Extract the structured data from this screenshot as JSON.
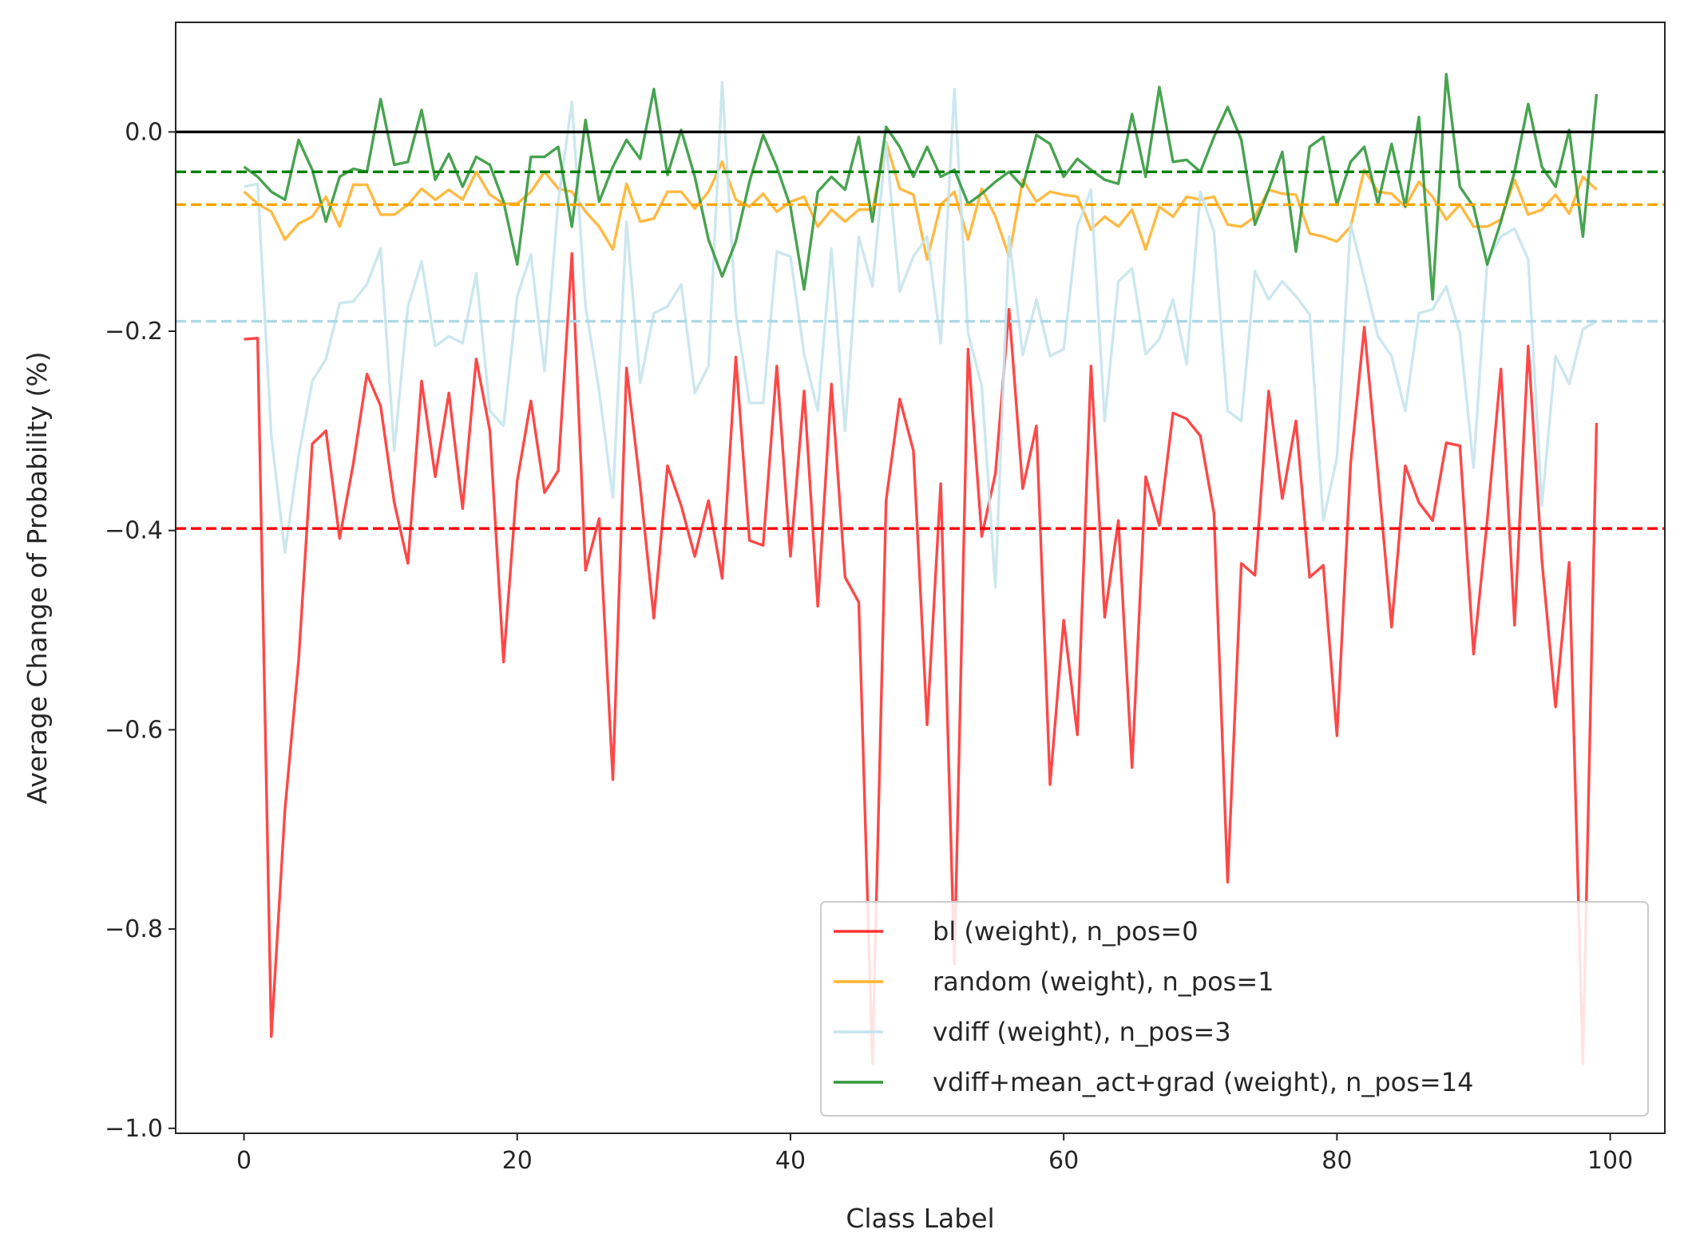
{
  "chart_data": {
    "type": "line",
    "title": "",
    "xlabel": "Class Label",
    "ylabel": "Average Change of Probability (%)",
    "xlim": [
      -5,
      104
    ],
    "ylim": [
      -1.005,
      0.11
    ],
    "xticks": [
      0,
      20,
      40,
      60,
      80,
      100
    ],
    "yticks": [
      0.0,
      -0.2,
      -0.4,
      -0.6,
      -0.8,
      -1.0
    ],
    "xtick_labels": [
      "0",
      "20",
      "40",
      "60",
      "80",
      "100"
    ],
    "ytick_labels": [
      "0.0",
      "−0.2",
      "−0.4",
      "−0.6",
      "−0.8",
      "−1.0"
    ],
    "grid": false,
    "legend_position": "lower-right",
    "reference_line": {
      "y": 0.0,
      "color": "#000000"
    },
    "series": [
      {
        "name": "bl (weight), n_pos=0",
        "color": "#ff3333",
        "mean": -0.398,
        "mean_color": "#ff0000",
        "values": [
          -0.208,
          -0.207,
          -0.908,
          -0.68,
          -0.53,
          -0.313,
          -0.3,
          -0.408,
          -0.333,
          -0.243,
          -0.275,
          -0.372,
          -0.433,
          -0.25,
          -0.346,
          -0.262,
          -0.378,
          -0.228,
          -0.3,
          -0.532,
          -0.35,
          -0.27,
          -0.362,
          -0.34,
          -0.122,
          -0.44,
          -0.388,
          -0.65,
          -0.237,
          -0.355,
          -0.488,
          -0.335,
          -0.375,
          -0.426,
          -0.37,
          -0.448,
          -0.226,
          -0.41,
          -0.415,
          -0.235,
          -0.426,
          -0.26,
          -0.476,
          -0.253,
          -0.447,
          -0.472,
          -0.935,
          -0.37,
          -0.268,
          -0.32,
          -0.595,
          -0.353,
          -0.835,
          -0.218,
          -0.406,
          -0.343,
          -0.178,
          -0.358,
          -0.295,
          -0.655,
          -0.49,
          -0.605,
          -0.235,
          -0.487,
          -0.39,
          -0.638,
          -0.346,
          -0.395,
          -0.282,
          -0.288,
          -0.305,
          -0.383,
          -0.753,
          -0.433,
          -0.445,
          -0.26,
          -0.368,
          -0.29,
          -0.447,
          -0.435,
          -0.606,
          -0.333,
          -0.196,
          -0.343,
          -0.497,
          -0.335,
          -0.372,
          -0.39,
          -0.312,
          -0.315,
          -0.524,
          -0.39,
          -0.238,
          -0.495,
          -0.215,
          -0.43,
          -0.577,
          -0.432,
          -0.935,
          -0.292
        ]
      },
      {
        "name": "random (weight), n_pos=1",
        "color": "#ffb32e",
        "mean": -0.073,
        "mean_color": "#ffa500",
        "values": [
          -0.06,
          -0.072,
          -0.08,
          -0.108,
          -0.092,
          -0.085,
          -0.065,
          -0.095,
          -0.053,
          -0.053,
          -0.083,
          -0.083,
          -0.073,
          -0.057,
          -0.068,
          -0.058,
          -0.068,
          -0.04,
          -0.063,
          -0.072,
          -0.072,
          -0.06,
          -0.04,
          -0.057,
          -0.06,
          -0.08,
          -0.095,
          -0.118,
          -0.052,
          -0.09,
          -0.087,
          -0.06,
          -0.06,
          -0.077,
          -0.06,
          -0.03,
          -0.068,
          -0.075,
          -0.062,
          -0.08,
          -0.07,
          -0.065,
          -0.095,
          -0.078,
          -0.09,
          -0.078,
          -0.078,
          -0.01,
          -0.057,
          -0.063,
          -0.128,
          -0.073,
          -0.06,
          -0.108,
          -0.057,
          -0.085,
          -0.125,
          -0.048,
          -0.07,
          -0.06,
          -0.063,
          -0.065,
          -0.098,
          -0.085,
          -0.095,
          -0.078,
          -0.118,
          -0.075,
          -0.085,
          -0.065,
          -0.068,
          -0.065,
          -0.093,
          -0.095,
          -0.085,
          -0.058,
          -0.062,
          -0.063,
          -0.102,
          -0.105,
          -0.11,
          -0.095,
          -0.038,
          -0.06,
          -0.062,
          -0.075,
          -0.05,
          -0.065,
          -0.088,
          -0.073,
          -0.095,
          -0.095,
          -0.088,
          -0.048,
          -0.083,
          -0.078,
          -0.063,
          -0.082,
          -0.045,
          -0.058
        ]
      },
      {
        "name": "vdiff (weight), n_pos=3",
        "color": "#c6e4ec",
        "mean": -0.19,
        "mean_color": "#add8e6",
        "values": [
          -0.055,
          -0.052,
          -0.305,
          -0.422,
          -0.325,
          -0.25,
          -0.228,
          -0.172,
          -0.17,
          -0.153,
          -0.117,
          -0.32,
          -0.175,
          -0.13,
          -0.215,
          -0.205,
          -0.212,
          -0.142,
          -0.28,
          -0.295,
          -0.165,
          -0.123,
          -0.24,
          -0.07,
          0.03,
          -0.175,
          -0.26,
          -0.367,
          -0.09,
          -0.252,
          -0.182,
          -0.175,
          -0.153,
          -0.262,
          -0.235,
          0.05,
          -0.182,
          -0.272,
          -0.272,
          -0.12,
          -0.125,
          -0.223,
          -0.28,
          -0.117,
          -0.3,
          -0.105,
          -0.155,
          -0.01,
          -0.16,
          -0.125,
          -0.105,
          -0.212,
          0.043,
          -0.202,
          -0.255,
          -0.457,
          -0.105,
          -0.224,
          -0.168,
          -0.225,
          -0.218,
          -0.095,
          -0.058,
          -0.29,
          -0.15,
          -0.137,
          -0.223,
          -0.208,
          -0.168,
          -0.233,
          -0.06,
          -0.1,
          -0.28,
          -0.29,
          -0.14,
          -0.168,
          -0.15,
          -0.165,
          -0.183,
          -0.39,
          -0.327,
          -0.092,
          -0.147,
          -0.205,
          -0.225,
          -0.28,
          -0.182,
          -0.178,
          -0.155,
          -0.202,
          -0.337,
          -0.13,
          -0.105,
          -0.097,
          -0.128,
          -0.375,
          -0.225,
          -0.253,
          -0.198,
          -0.19
        ]
      },
      {
        "name": "vdiff+mean_act+grad (weight), n_pos=14",
        "color": "#33993d",
        "mean": -0.04,
        "mean_color": "#008000",
        "values": [
          -0.035,
          -0.045,
          -0.06,
          -0.068,
          -0.008,
          -0.038,
          -0.09,
          -0.045,
          -0.037,
          -0.04,
          0.033,
          -0.033,
          -0.03,
          0.022,
          -0.048,
          -0.022,
          -0.055,
          -0.025,
          -0.033,
          -0.07,
          -0.133,
          -0.025,
          -0.025,
          -0.015,
          -0.095,
          0.012,
          -0.07,
          -0.035,
          -0.008,
          -0.027,
          0.043,
          -0.043,
          0.002,
          -0.045,
          -0.108,
          -0.145,
          -0.11,
          -0.05,
          -0.003,
          -0.035,
          -0.075,
          -0.158,
          -0.06,
          -0.045,
          -0.058,
          -0.005,
          -0.09,
          0.005,
          -0.015,
          -0.045,
          -0.015,
          -0.045,
          -0.038,
          -0.072,
          -0.062,
          -0.05,
          -0.04,
          -0.055,
          -0.003,
          -0.012,
          -0.045,
          -0.027,
          -0.038,
          -0.048,
          -0.052,
          0.018,
          -0.045,
          0.045,
          -0.03,
          -0.028,
          -0.04,
          -0.005,
          0.025,
          -0.008,
          -0.093,
          -0.058,
          -0.02,
          -0.12,
          -0.015,
          -0.005,
          -0.073,
          -0.03,
          -0.015,
          -0.072,
          -0.012,
          -0.075,
          0.015,
          -0.168,
          0.058,
          -0.055,
          -0.075,
          -0.133,
          -0.09,
          -0.04,
          0.028,
          -0.035,
          -0.055,
          0.002,
          -0.105,
          0.038
        ]
      }
    ]
  }
}
